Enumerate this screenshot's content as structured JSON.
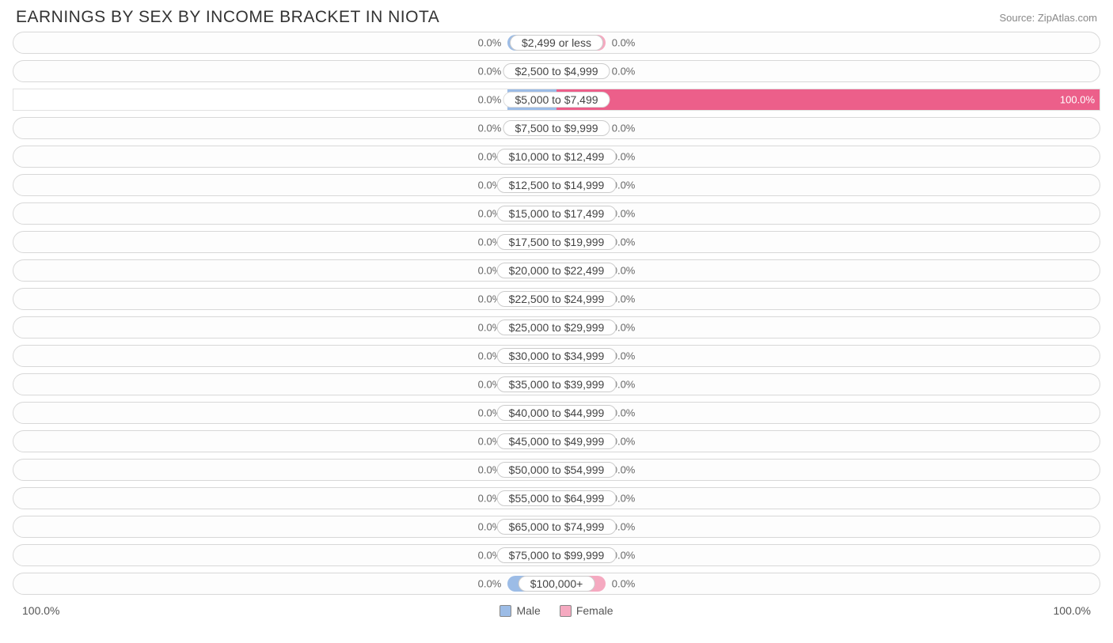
{
  "title": "EARNINGS BY SEX BY INCOME BRACKET IN NIOTA",
  "source": "Source: ZipAtlas.com",
  "axis_left": "100.0%",
  "axis_right": "100.0%",
  "legend": {
    "male": "Male",
    "female": "Female"
  },
  "colors": {
    "male_fill": "#9cbce6",
    "male_deep": "#5a8fd6",
    "female_fill": "#f5a9c0",
    "female_deep": "#ec5f8a",
    "row_border": "#d8d8d8"
  },
  "min_bar_pct": 9,
  "rows": [
    {
      "label": "$2,499 or less",
      "male": 0.0,
      "female": 0.0
    },
    {
      "label": "$2,500 to $4,999",
      "male": 0.0,
      "female": 0.0
    },
    {
      "label": "$5,000 to $7,499",
      "male": 0.0,
      "female": 100.0
    },
    {
      "label": "$7,500 to $9,999",
      "male": 0.0,
      "female": 0.0
    },
    {
      "label": "$10,000 to $12,499",
      "male": 0.0,
      "female": 0.0
    },
    {
      "label": "$12,500 to $14,999",
      "male": 0.0,
      "female": 0.0
    },
    {
      "label": "$15,000 to $17,499",
      "male": 0.0,
      "female": 0.0
    },
    {
      "label": "$17,500 to $19,999",
      "male": 0.0,
      "female": 0.0
    },
    {
      "label": "$20,000 to $22,499",
      "male": 0.0,
      "female": 0.0
    },
    {
      "label": "$22,500 to $24,999",
      "male": 0.0,
      "female": 0.0
    },
    {
      "label": "$25,000 to $29,999",
      "male": 0.0,
      "female": 0.0
    },
    {
      "label": "$30,000 to $34,999",
      "male": 0.0,
      "female": 0.0
    },
    {
      "label": "$35,000 to $39,999",
      "male": 0.0,
      "female": 0.0
    },
    {
      "label": "$40,000 to $44,999",
      "male": 0.0,
      "female": 0.0
    },
    {
      "label": "$45,000 to $49,999",
      "male": 0.0,
      "female": 0.0
    },
    {
      "label": "$50,000 to $54,999",
      "male": 0.0,
      "female": 0.0
    },
    {
      "label": "$55,000 to $64,999",
      "male": 0.0,
      "female": 0.0
    },
    {
      "label": "$65,000 to $74,999",
      "male": 0.0,
      "female": 0.0
    },
    {
      "label": "$75,000 to $99,999",
      "male": 0.0,
      "female": 0.0
    },
    {
      "label": "$100,000+",
      "male": 0.0,
      "female": 0.0
    }
  ]
}
